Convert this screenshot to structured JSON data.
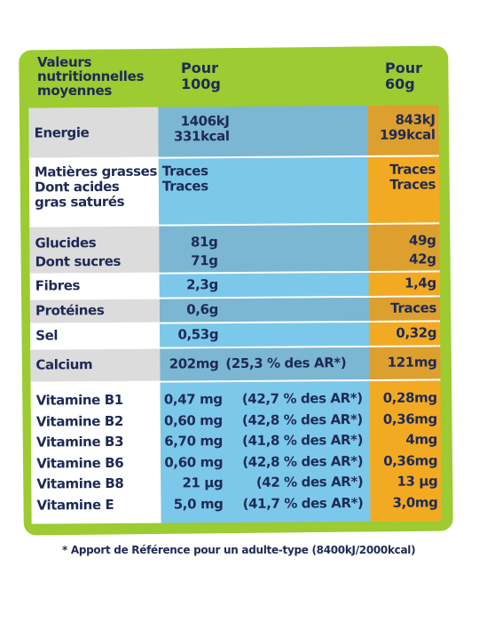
{
  "header": {
    "label_col": "Valeurs\nnutritionnelles\nmoyennes",
    "col_100": "Pour\n100g",
    "col_60": "Pour\n60g"
  },
  "rows": [
    {
      "label": "Energie",
      "v100": "1406kJ\n331kcal",
      "ar": "",
      "v60": "843kJ\n199kcal"
    },
    {
      "label": "Matières grasses\nDont acides\ngras saturés",
      "v100": "Traces\nTraces",
      "ar": "",
      "v60": "Traces\nTraces"
    },
    {
      "label": "Glucides\nDont sucres",
      "v100": "81g\n71g",
      "ar": "",
      "v60": "49g\n42g"
    },
    {
      "label": "Fibres",
      "v100": "2,3g",
      "ar": "",
      "v60": "1,4g"
    },
    {
      "label": "Protéines",
      "v100": "0,6g",
      "ar": "",
      "v60": "Traces"
    },
    {
      "label": "Sel",
      "v100": "0,53g",
      "ar": "",
      "v60": "0,32g"
    },
    {
      "label": "Calcium",
      "v100": "202mg",
      "ar": "(25,3 % des AR*)",
      "v60": "121mg"
    },
    {
      "label": "Vitamine B1\nVitamine B2\nVitamine B3\nVitamine B6\nVitamine B8\nVitamine E",
      "v100": "0,47 mg\n0,60 mg\n6,70 mg\n0,60 mg\n21 µg\n5,0 mg",
      "ar": "(42,7 % des AR*)\n(42,8 % des AR*)\n(41,8 % des AR*)\n(42,8 % des AR*)\n(42 % des AR*)\n(41,7 % des AR*)",
      "v60": "0,28mg\n0,36mg\n4mg\n0,36mg\n13 µg\n3,0mg"
    }
  ],
  "footnote": "* Apport de Référence pour un adulte-type (8400kJ/2000kcal)",
  "colors": {
    "frame": "#9ccb32",
    "col_100": "#7cc8ea",
    "col_60": "#f3aa23",
    "text": "#1e2a55"
  }
}
